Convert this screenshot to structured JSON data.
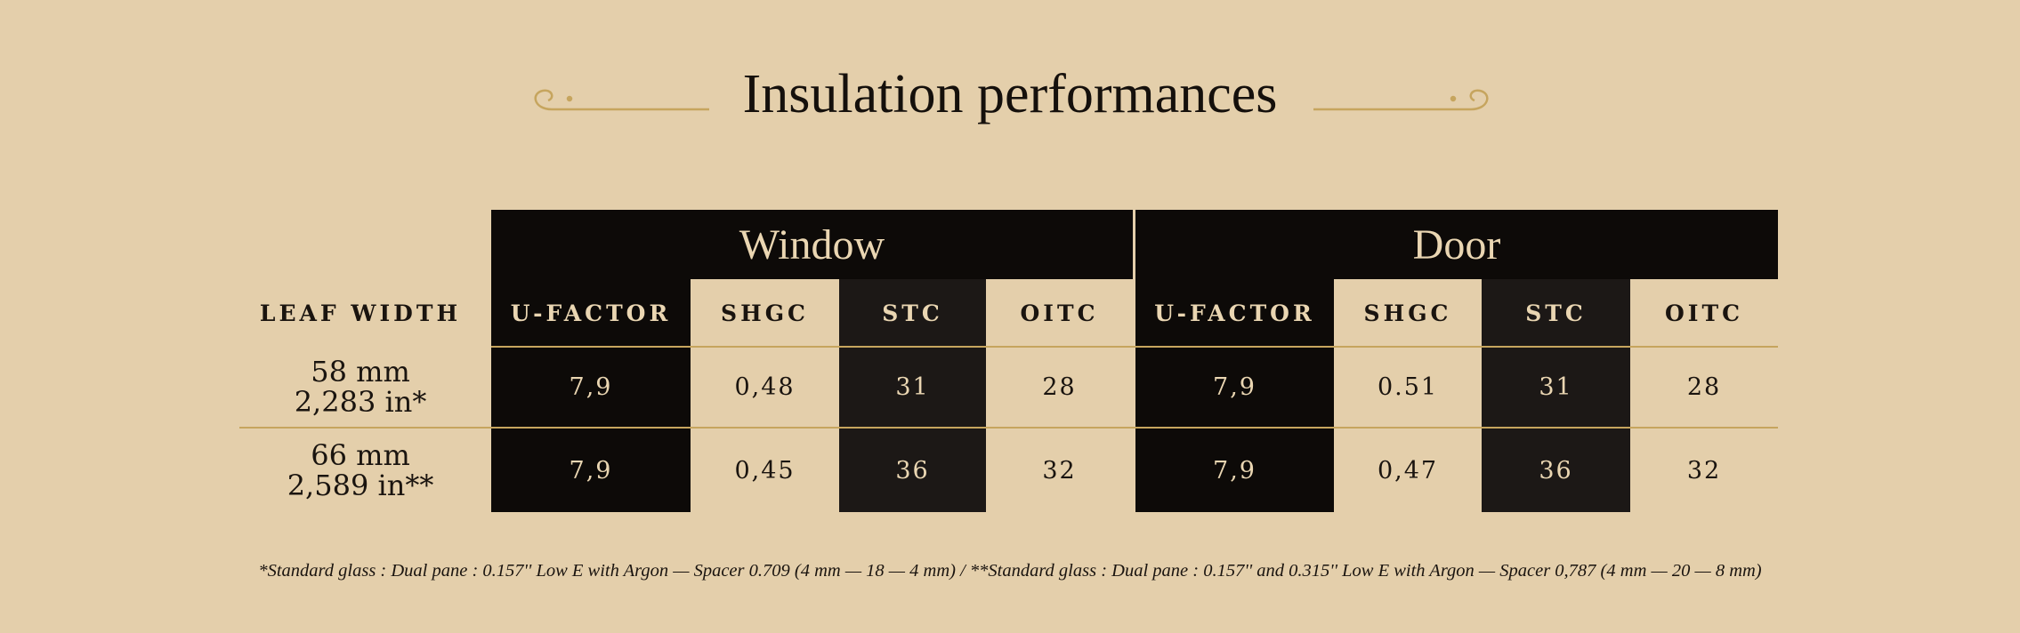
{
  "header": {
    "title": "Insulation performances"
  },
  "table": {
    "row_header": "LEAF WIDTH",
    "groups": [
      "Window",
      "Door"
    ],
    "columns": [
      "U-FACTOR",
      "SHGC",
      "STC",
      "OITC",
      "U-FACTOR",
      "SHGC",
      "STC",
      "OITC"
    ],
    "rows": [
      {
        "label": [
          "58 mm",
          "2,283 in*"
        ],
        "cells": [
          "7,9",
          "0,48",
          "31",
          "28",
          "7,9",
          "0.51",
          "31",
          "28"
        ]
      },
      {
        "label": [
          "66 mm",
          "2,589 in**"
        ],
        "cells": [
          "7,9",
          "0,45",
          "36",
          "32",
          "7,9",
          "0,47",
          "36",
          "32"
        ]
      }
    ]
  },
  "footnote": "*Standard glass : Dual pane : 0.157'' Low E with Argon — Spacer 0.709  (4 mm — 18 — 4 mm) / **Standard glass : Dual pane : 0.157'' and 0.315'' Low E with Argon — Spacer 0,787  (4 mm — 20 — 8 mm)"
}
